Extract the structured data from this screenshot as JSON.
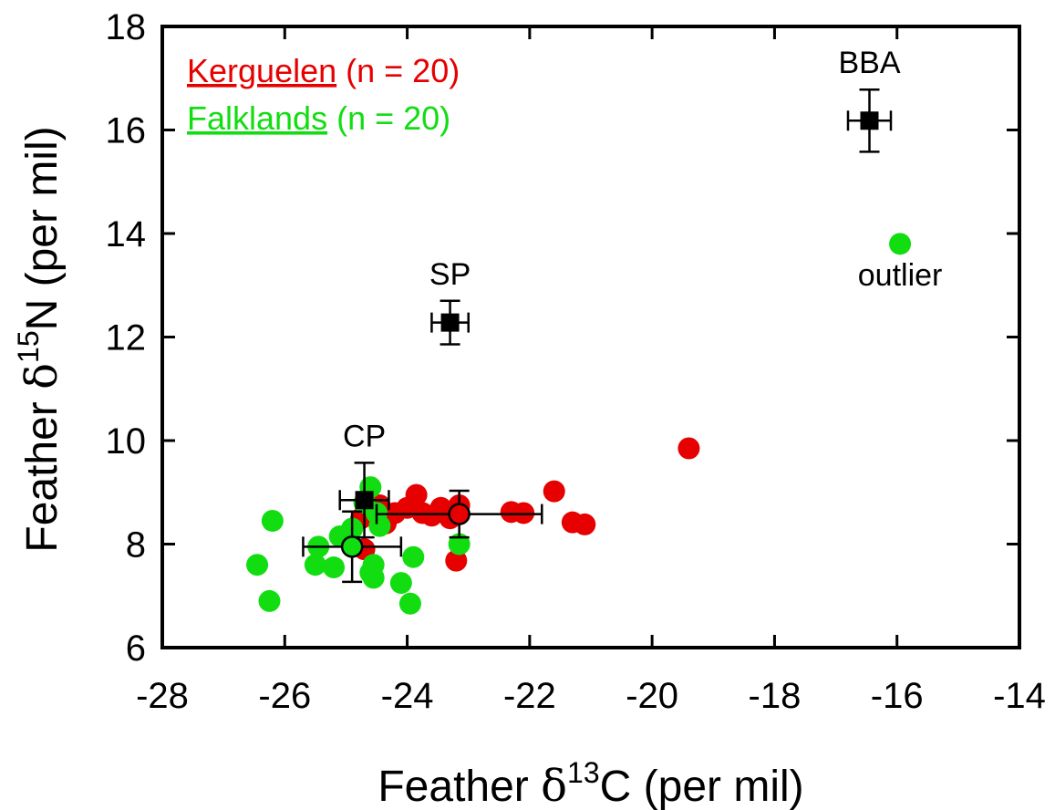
{
  "chart_data": {
    "type": "scatter",
    "xlabel": {
      "prefix": "Feather ",
      "symbol": "δ",
      "sup": "13",
      "element": "C",
      "suffix": " (per mil)"
    },
    "ylabel": {
      "prefix": "Feather ",
      "symbol": "δ",
      "sup": "15",
      "element": "N",
      "suffix": " (per mil)"
    },
    "xlim": [
      -28,
      -14
    ],
    "ylim": [
      6,
      18
    ],
    "xticks": [
      -28,
      -26,
      -24,
      -22,
      -20,
      -18,
      -16,
      -14
    ],
    "yticks": [
      6,
      8,
      10,
      12,
      14,
      16,
      18
    ],
    "grid": false,
    "legend": {
      "placement": "top-left",
      "entries": [
        {
          "name": "Kerguelen",
          "detail": "(n = 20)",
          "color": "#e60000"
        },
        {
          "name": "Falklands",
          "detail": "(n = 20)",
          "color": "#11dd11"
        }
      ]
    },
    "series": [
      {
        "name": "Kerguelen",
        "color": "#e60000",
        "points": [
          [
            -24.7,
            7.9
          ],
          [
            -24.75,
            8.5
          ],
          [
            -24.45,
            8.75
          ],
          [
            -24.35,
            8.4
          ],
          [
            -24.2,
            8.6
          ],
          [
            -24.0,
            8.7
          ],
          [
            -23.85,
            8.95
          ],
          [
            -23.75,
            8.6
          ],
          [
            -23.6,
            8.55
          ],
          [
            -23.45,
            8.7
          ],
          [
            -23.3,
            8.5
          ],
          [
            -23.15,
            8.75
          ],
          [
            -23.2,
            7.68
          ],
          [
            -22.3,
            8.62
          ],
          [
            -22.1,
            8.6
          ],
          [
            -21.6,
            9.02
          ],
          [
            -21.3,
            8.42
          ],
          [
            -21.1,
            8.38
          ],
          [
            -19.4,
            9.85
          ],
          [
            -24.5,
            8.5
          ]
        ]
      },
      {
        "name": "Falklands",
        "color": "#11dd11",
        "points": [
          [
            -26.45,
            7.6
          ],
          [
            -26.2,
            8.45
          ],
          [
            -26.25,
            6.9
          ],
          [
            -25.45,
            7.95
          ],
          [
            -25.5,
            7.6
          ],
          [
            -25.2,
            7.55
          ],
          [
            -25.1,
            8.15
          ],
          [
            -24.9,
            8.3
          ],
          [
            -24.7,
            8.8
          ],
          [
            -24.6,
            9.1
          ],
          [
            -24.5,
            8.6
          ],
          [
            -24.55,
            7.6
          ],
          [
            -24.6,
            7.45
          ],
          [
            -24.55,
            7.35
          ],
          [
            -24.1,
            7.25
          ],
          [
            -23.95,
            6.85
          ],
          [
            -23.9,
            7.75
          ],
          [
            -23.15,
            8.0
          ],
          [
            -24.45,
            8.35
          ],
          [
            -15.95,
            13.8
          ]
        ]
      }
    ],
    "means": [
      {
        "name": "Kerguelen mean",
        "color": "#e60000",
        "x": -23.15,
        "y": 8.58,
        "xerr": 1.35,
        "yerr": 0.45
      },
      {
        "name": "Falklands mean",
        "color": "#11dd11",
        "x": -24.9,
        "y": 7.95,
        "xerr": 0.8,
        "yerr": 0.68
      }
    ],
    "reference_points": [
      {
        "label": "BBA",
        "x": -16.45,
        "y": 16.18,
        "xerr": 0.35,
        "yerr": 0.6,
        "label_pos": "above"
      },
      {
        "label": "SP",
        "x": -23.3,
        "y": 12.28,
        "xerr": 0.3,
        "yerr": 0.42,
        "label_pos": "above"
      },
      {
        "label": "CP",
        "x": -24.7,
        "y": 8.85,
        "xerr": 0.4,
        "yerr": 0.72,
        "label_pos": "above"
      }
    ],
    "annotations": [
      {
        "text": "outlier",
        "x": -15.95,
        "y": 13.0,
        "color": "#11dd11"
      }
    ]
  }
}
